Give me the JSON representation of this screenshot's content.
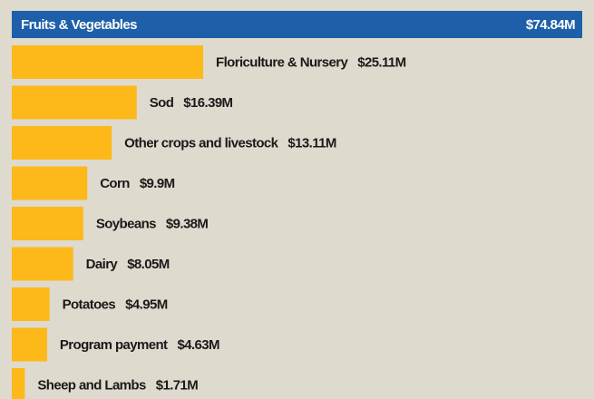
{
  "chart_data": {
    "type": "bar",
    "orientation": "horizontal",
    "categories": [
      "Fruits & Vegetables",
      "Floriculture & Nursery",
      "Sod",
      "Other crops and livestock",
      "Corn",
      "Soybeans",
      "Dairy",
      "Potatoes",
      "Program payment",
      "Sheep and Lambs"
    ],
    "values": [
      74.84,
      25.11,
      16.39,
      13.11,
      9.9,
      9.38,
      8.05,
      4.95,
      4.63,
      1.71
    ],
    "value_labels": [
      "$74.84M",
      "$25.11M",
      "$16.39M",
      "$13.11M",
      "$9.9M",
      "$9.38M",
      "$8.05M",
      "$4.95M",
      "$4.63M",
      "$1.71M"
    ],
    "colors": [
      "#1e5fa9",
      "#fdb819",
      "#fdb819",
      "#fdb819",
      "#fdb819",
      "#fdb819",
      "#fdb819",
      "#fdb819",
      "#fdb819",
      "#fdb819"
    ]
  }
}
